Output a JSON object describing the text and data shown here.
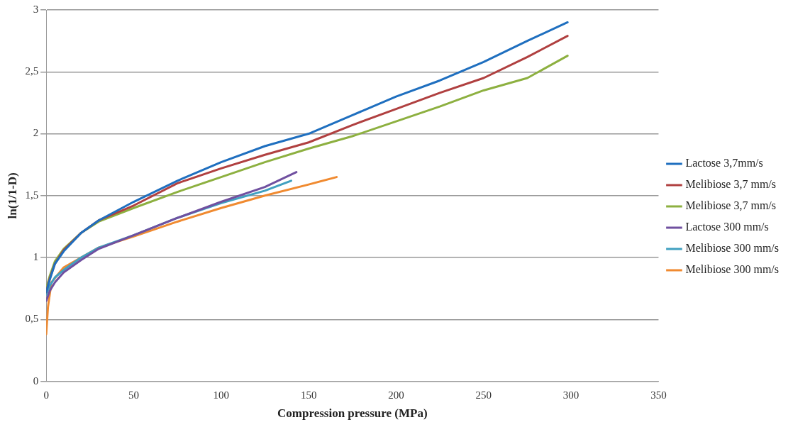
{
  "chart_data": {
    "type": "line",
    "xlabel": "Compression pressure (MPa)",
    "ylabel": "ln(1/1-D)",
    "xlim": [
      0,
      350
    ],
    "xticks": [
      0,
      50,
      100,
      150,
      200,
      250,
      300,
      350
    ],
    "ylim": [
      0,
      3
    ],
    "yticks": [
      0,
      {
        "value": 0.5,
        "label": "0,5"
      },
      1,
      {
        "value": 1.5,
        "label": "1,5"
      },
      2,
      {
        "value": 2.5,
        "label": "2,5"
      },
      3
    ],
    "grid": "y",
    "legend": "right",
    "marker": "none",
    "line_style": "solid",
    "series": [
      {
        "name": "Lactose 3,7mm/s",
        "color": "#1f6fbf",
        "x": [
          0,
          2,
          5,
          10,
          20,
          30,
          50,
          75,
          100,
          125,
          150,
          175,
          200,
          225,
          250,
          275,
          298
        ],
        "values": [
          0.72,
          0.82,
          0.95,
          1.05,
          1.2,
          1.3,
          1.45,
          1.62,
          1.77,
          1.9,
          2.0,
          2.15,
          2.3,
          2.43,
          2.58,
          2.75,
          2.9
        ]
      },
      {
        "name": "Melibiose 3,7 mm/s",
        "color": "#b04040",
        "x": [
          0,
          2,
          5,
          10,
          20,
          30,
          50,
          75,
          100,
          125,
          150,
          175,
          200,
          225,
          250,
          275,
          298
        ],
        "values": [
          0.72,
          0.83,
          0.95,
          1.06,
          1.2,
          1.3,
          1.42,
          1.6,
          1.72,
          1.83,
          1.93,
          2.07,
          2.2,
          2.33,
          2.45,
          2.62,
          2.79
        ]
      },
      {
        "name": "Melibiose 3,7 mm/s",
        "color": "#8db040",
        "x": [
          0,
          2,
          5,
          10,
          20,
          30,
          50,
          75,
          100,
          125,
          150,
          175,
          200,
          225,
          250,
          275,
          298
        ],
        "values": [
          0.75,
          0.85,
          0.97,
          1.07,
          1.2,
          1.29,
          1.4,
          1.53,
          1.65,
          1.77,
          1.88,
          1.98,
          2.1,
          2.22,
          2.35,
          2.45,
          2.63
        ]
      },
      {
        "name": "Lactose 300 mm/s",
        "color": "#7050a0",
        "x": [
          0,
          2,
          5,
          10,
          20,
          30,
          50,
          75,
          100,
          125,
          143
        ],
        "values": [
          0.65,
          0.73,
          0.8,
          0.88,
          0.98,
          1.07,
          1.18,
          1.32,
          1.45,
          1.57,
          1.69
        ]
      },
      {
        "name": "Melibiose 300 mm/s",
        "color": "#40a0c0",
        "x": [
          0,
          2,
          5,
          10,
          20,
          30,
          50,
          75,
          100,
          125,
          140
        ],
        "values": [
          0.7,
          0.77,
          0.84,
          0.9,
          1.0,
          1.08,
          1.18,
          1.32,
          1.44,
          1.54,
          1.62
        ]
      },
      {
        "name": "Melibiose 300 mm/s",
        "color": "#f08a30",
        "x": [
          0,
          1,
          3,
          10,
          20,
          30,
          50,
          75,
          100,
          125,
          150,
          166
        ],
        "values": [
          0.38,
          0.6,
          0.8,
          0.92,
          1.0,
          1.08,
          1.17,
          1.29,
          1.4,
          1.5,
          1.59,
          1.65
        ]
      }
    ]
  }
}
